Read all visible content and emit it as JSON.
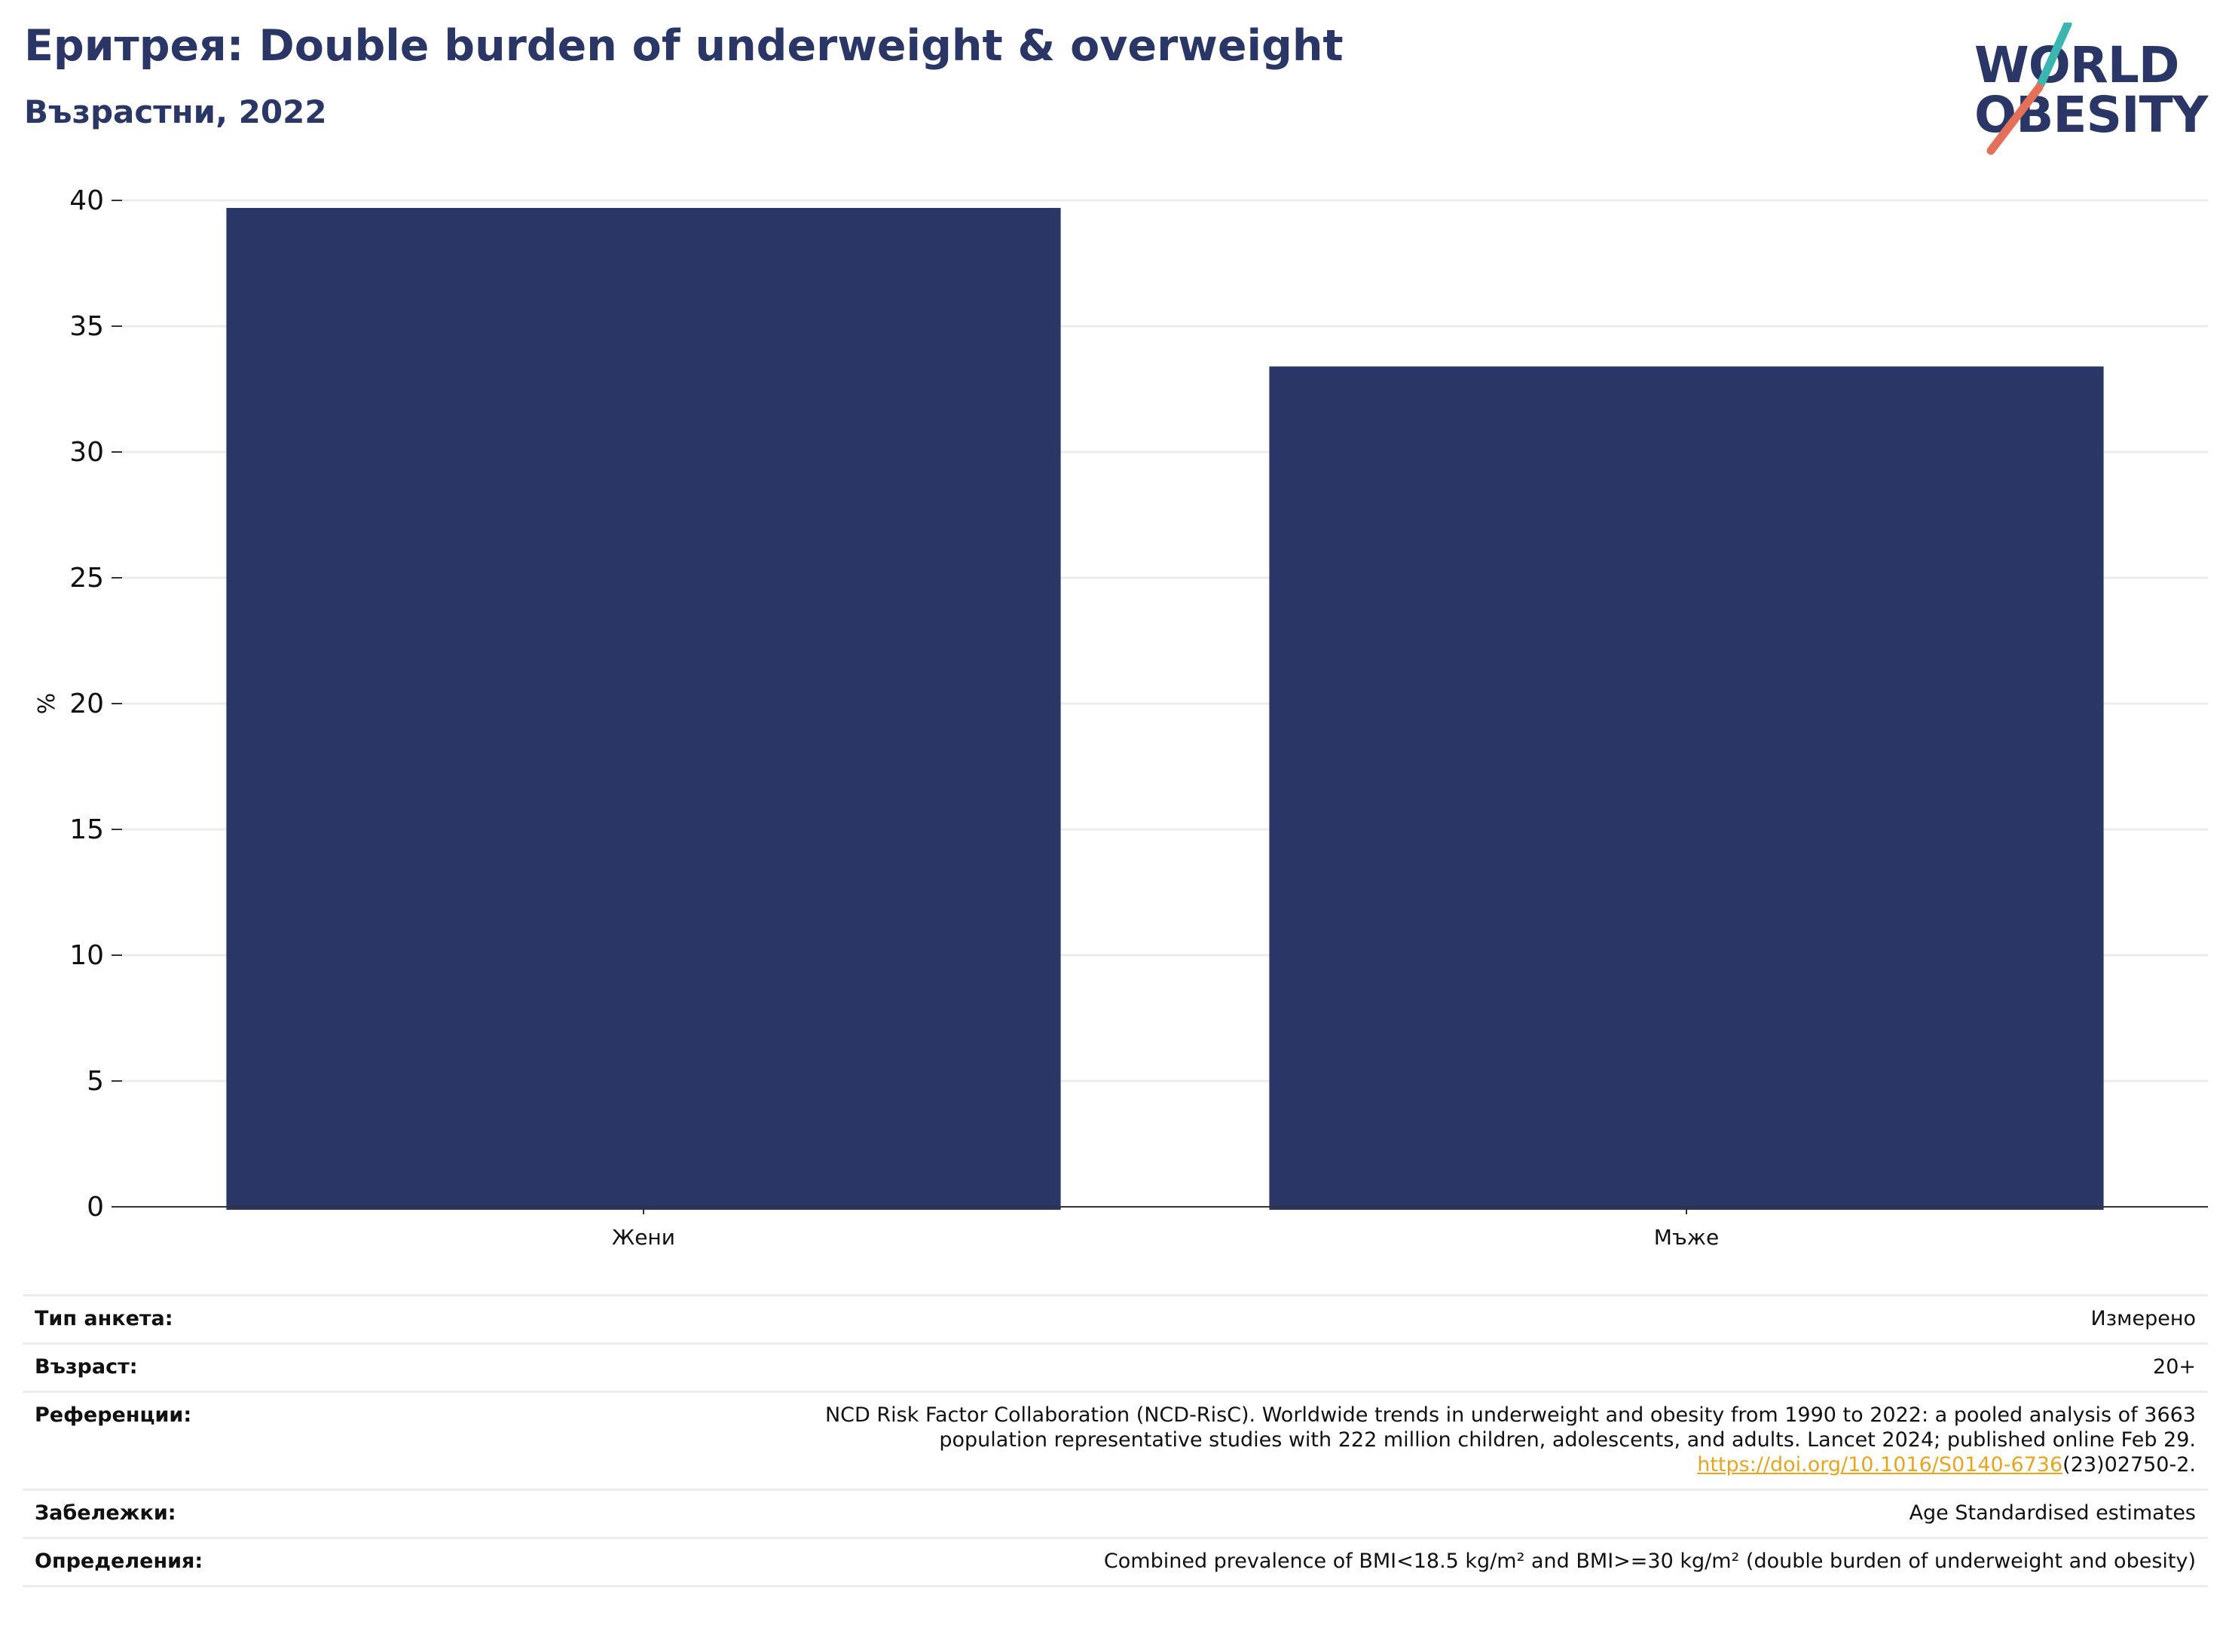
{
  "header": {
    "title": "Еритрея: Double burden of underweight & overweight",
    "subtitle": "Възрастни, 2022"
  },
  "logo": {
    "line1": "WORLD",
    "line2": "OBESITY",
    "accent_teal": "#3bb6b0",
    "accent_coral": "#e4705a",
    "brand_navy": "#2a3766"
  },
  "chart_data": {
    "type": "bar",
    "categories": [
      "Жени",
      "Мъже"
    ],
    "values": [
      39.7,
      33.4
    ],
    "ylabel": "%",
    "xlabel": "",
    "ylim": [
      0,
      40
    ],
    "yticks": [
      0,
      5,
      10,
      15,
      20,
      25,
      30,
      35,
      40
    ],
    "grid": true,
    "bar_color": "#2a3766"
  },
  "meta": [
    {
      "label": "Тип анкета:",
      "value": "Измерено"
    },
    {
      "label": "Възраст:",
      "value": "20+"
    },
    {
      "label": "Референции:",
      "value_lines": [
        "NCD Risk Factor Collaboration (NCD-RisC). Worldwide trends in underweight and obesity from 1990 to 2022: a pooled analysis of 3663",
        "population representative studies with 222 million children, adolescents, and adults. Lancet 2024; published online Feb 29."
      ],
      "link_text": "https://doi.org/10.1016/S0140-6736",
      "link_suffix": "(23)02750-2."
    },
    {
      "label": "Забележки:",
      "value": "Age Standardised estimates"
    },
    {
      "label": "Определения:",
      "value": "Combined prevalence of BMI<18.5 kg/m² and BMI>=30 kg/m² (double burden of underweight and obesity)"
    }
  ]
}
